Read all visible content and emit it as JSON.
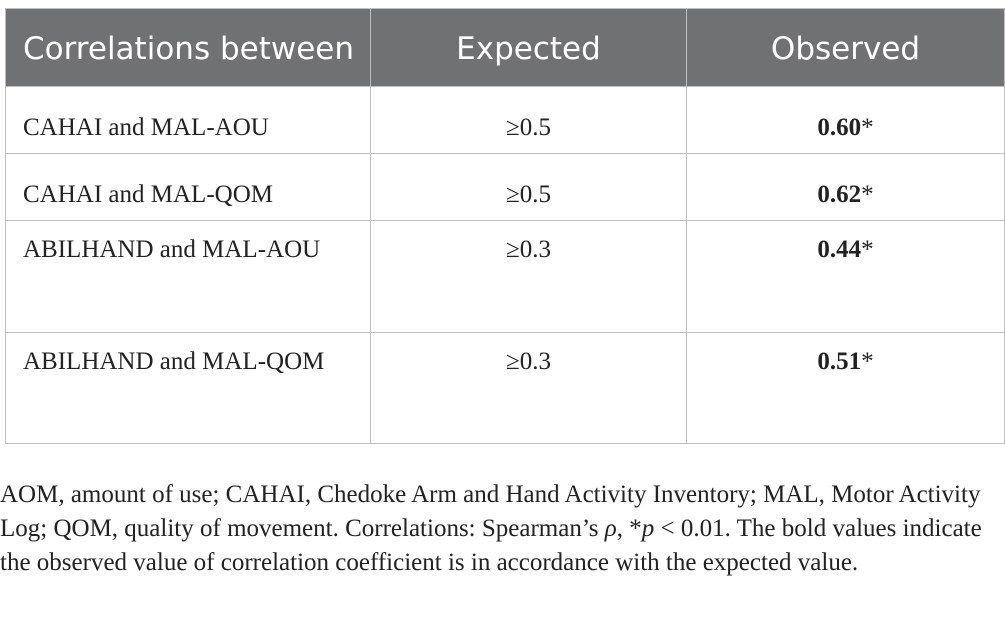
{
  "table": {
    "headers": [
      "Correlations between",
      "Expected",
      "Observed"
    ],
    "rows": [
      {
        "correlation": "CAHAI and MAL-AOU",
        "expected": "≥0.5",
        "observed_value": "0.60",
        "observed_mark": "*"
      },
      {
        "correlation": "CAHAI and MAL-QOM",
        "expected": "≥0.5",
        "observed_value": "0.62",
        "observed_mark": "*"
      },
      {
        "correlation": "ABILHAND and MAL-AOU",
        "expected": "≥0.3",
        "observed_value": "0.44",
        "observed_mark": "*"
      },
      {
        "correlation": "ABILHAND and MAL-QOM",
        "expected": "≥0.3",
        "observed_value": "0.51",
        "observed_mark": "*"
      }
    ]
  },
  "footnote": {
    "part1": "AOM, amount of use; CAHAI, Chedoke Arm and Hand Activity Inventory; MAL, Motor Activity Log; QOM, quality of movement. Correlations: Spearman’s ",
    "rho": "ρ",
    "part2": ", *",
    "p": "p",
    "part3": " < 0.01. The bold values indicate the observed value of correlation coefficient is in accordance with the expected value."
  }
}
